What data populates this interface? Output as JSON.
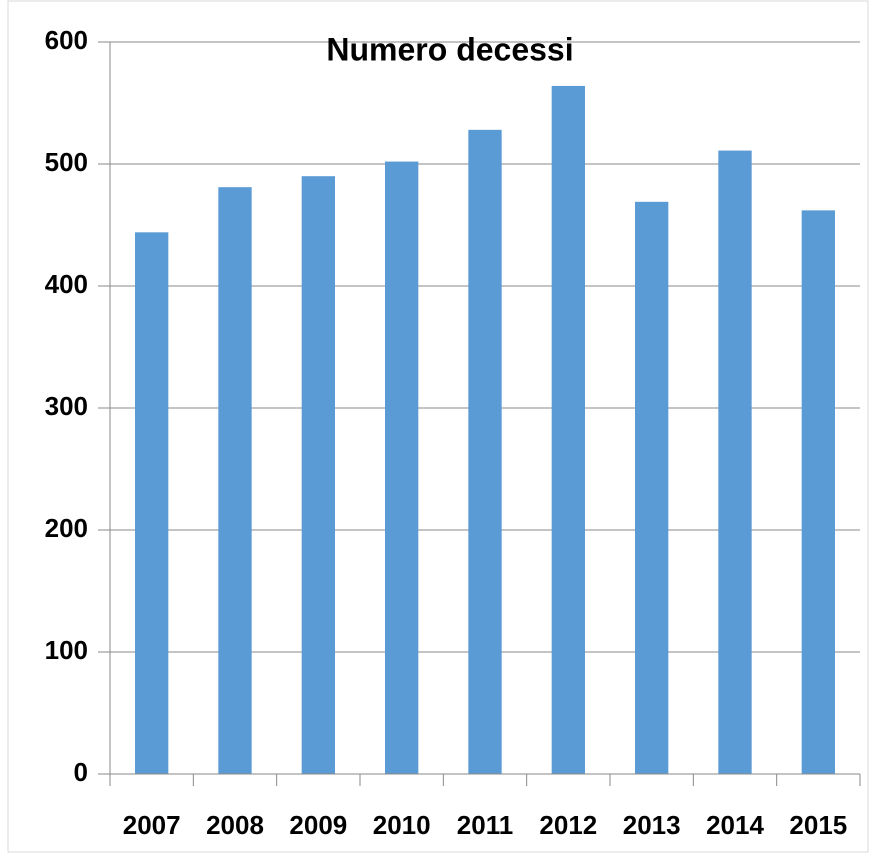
{
  "chart_data": {
    "type": "bar",
    "title": "Numero decessi",
    "categories": [
      "2007",
      "2008",
      "2009",
      "2010",
      "2011",
      "2012",
      "2013",
      "2014",
      "2015"
    ],
    "values": [
      444,
      481,
      490,
      502,
      528,
      564,
      469,
      511,
      462
    ],
    "color": "#5b9bd5",
    "ylim": [
      0,
      600
    ],
    "yticks": [
      0,
      100,
      200,
      300,
      400,
      500,
      600
    ],
    "grid": true
  }
}
